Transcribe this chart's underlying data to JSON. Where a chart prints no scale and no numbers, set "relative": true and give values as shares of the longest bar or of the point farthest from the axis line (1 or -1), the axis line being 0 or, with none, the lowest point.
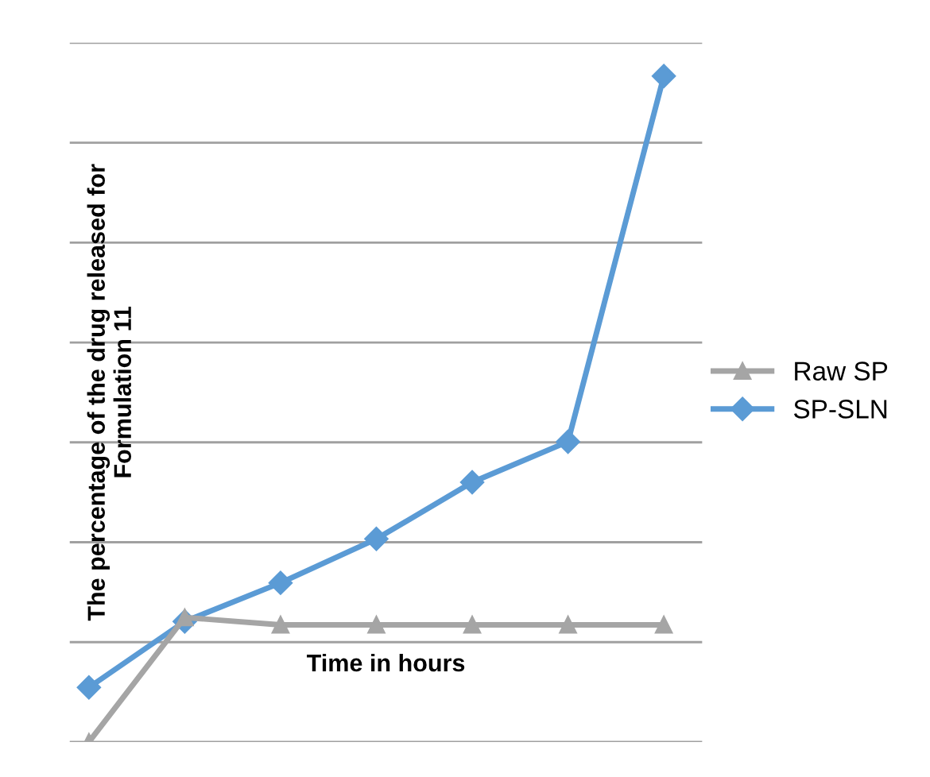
{
  "chart_data": {
    "type": "line",
    "relative": true,
    "xlabel": "Time in hours",
    "ylabel": "The percentage of the drug released for\nFormulation 11",
    "categories": [
      null,
      null,
      null,
      null,
      null,
      null,
      null
    ],
    "series": [
      {
        "name": "Raw SP",
        "color": "#a5a5a5",
        "marker": "triangle",
        "values": [
          0,
          0.187,
          0.176,
          0.176,
          0.176,
          0.176,
          0.176
        ]
      },
      {
        "name": "SP-SLN",
        "color": "#5b9bd5",
        "marker": "diamond",
        "values": [
          0.082,
          0.181,
          0.239,
          0.305,
          0.39,
          0.451,
          1
        ]
      }
    ],
    "grid": "y",
    "legend": "right",
    "tick_labels": false
  }
}
